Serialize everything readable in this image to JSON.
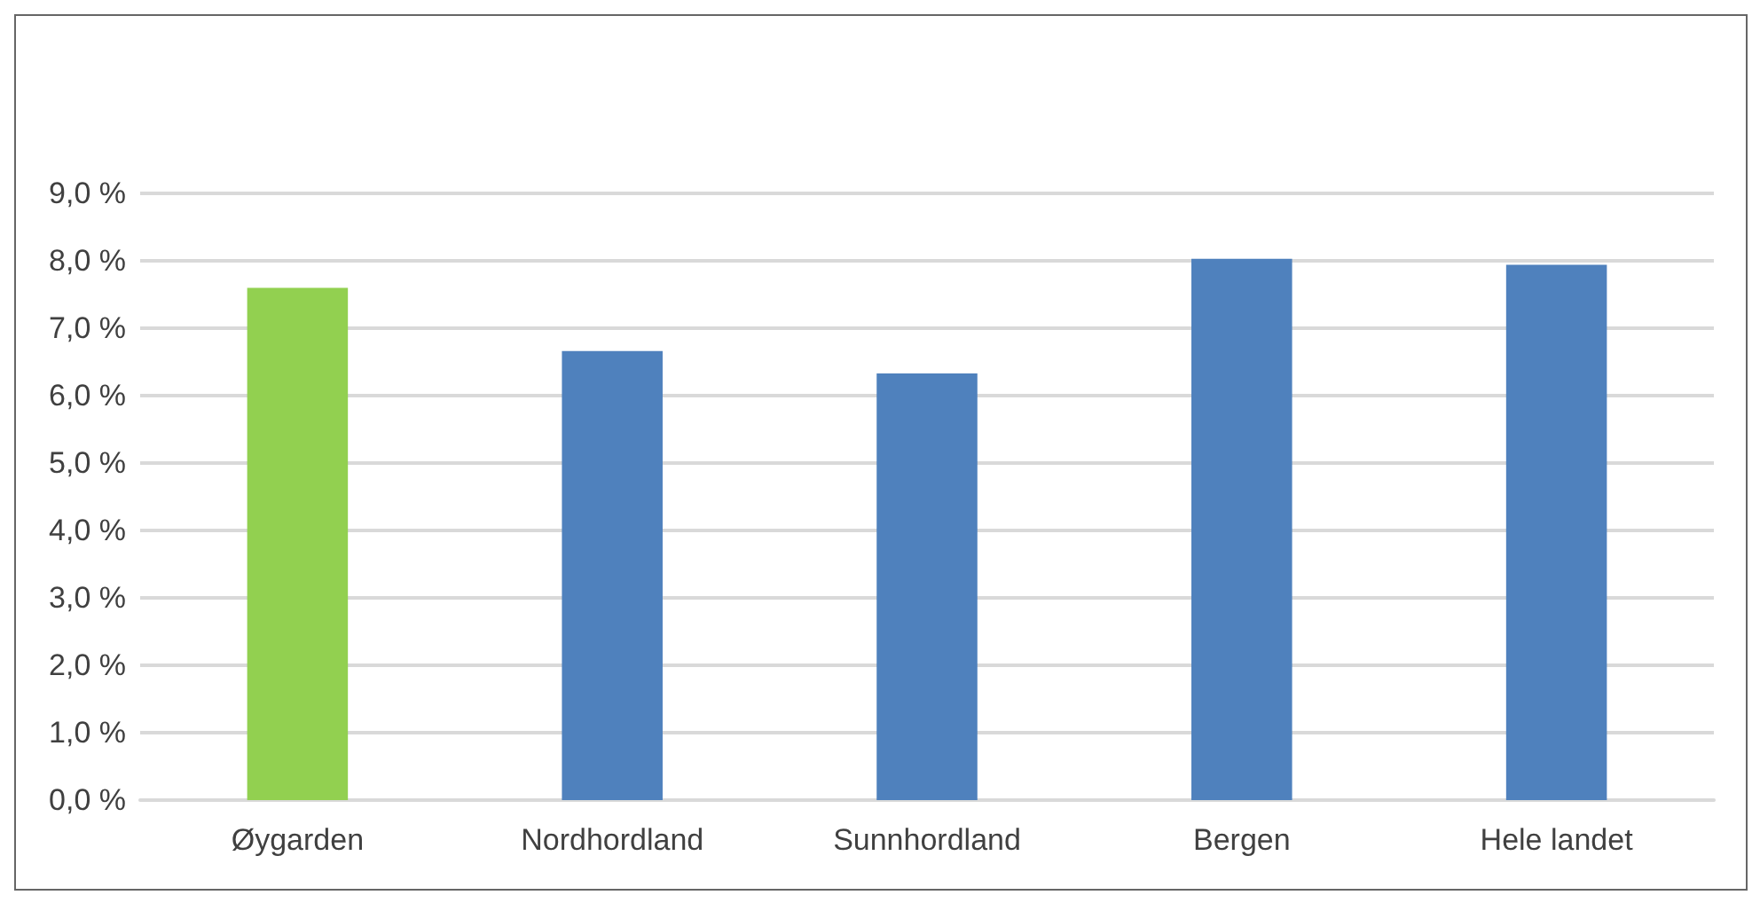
{
  "chart_data": {
    "type": "bar",
    "categories": [
      "Øygarden",
      "Nordhordland",
      "Sunnhordland",
      "Bergen",
      "Hele landet"
    ],
    "values": [
      7.6,
      6.66,
      6.33,
      8.03,
      7.94
    ],
    "colors": [
      "#92d050",
      "#4f81bd",
      "#4f81bd",
      "#4f81bd",
      "#4f81bd"
    ],
    "ylim": [
      0,
      9
    ],
    "yticks": [
      {
        "value": 0,
        "label": "0,0 %"
      },
      {
        "value": 1,
        "label": "1,0 %"
      },
      {
        "value": 2,
        "label": "2,0 %"
      },
      {
        "value": 3,
        "label": "3,0 %"
      },
      {
        "value": 4,
        "label": "4,0 %"
      },
      {
        "value": 5,
        "label": "5,0 %"
      },
      {
        "value": 6,
        "label": "6,0 %"
      },
      {
        "value": 7,
        "label": "7,0 %"
      },
      {
        "value": 8,
        "label": "8,0 %"
      },
      {
        "value": 9,
        "label": "9,0 %"
      }
    ],
    "grid": true
  }
}
